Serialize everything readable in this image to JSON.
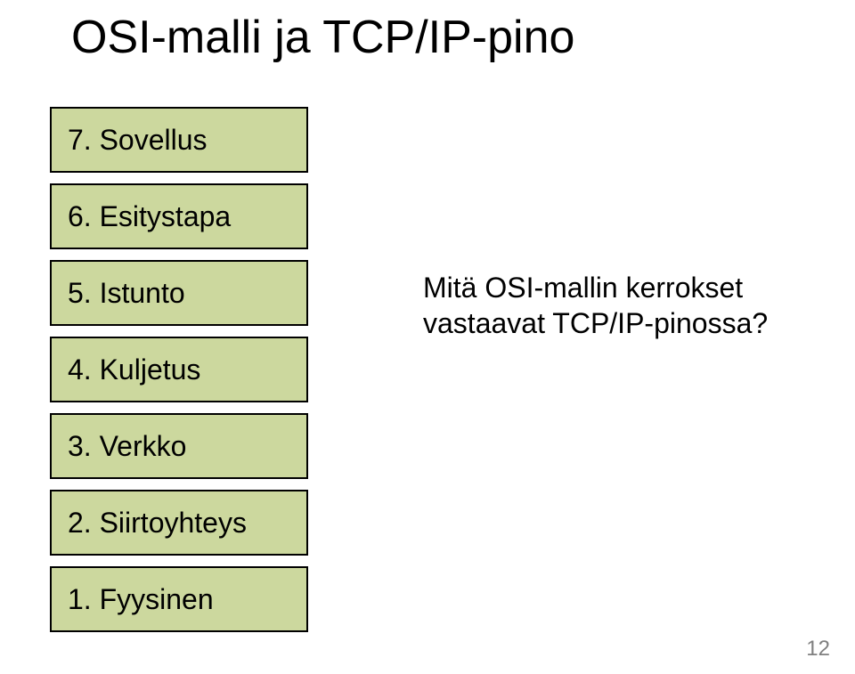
{
  "title": "OSI-malli ja TCP/IP-pino",
  "layer_fill": "#ccd89e",
  "layer_border": "#000000",
  "layers": [
    {
      "label": "7. Sovellus"
    },
    {
      "label": "6. Esitystapa"
    },
    {
      "label": "5. Istunto"
    },
    {
      "label": "4. Kuljetus"
    },
    {
      "label": "3. Verkko"
    },
    {
      "label": "2. Siirtoyhteys"
    },
    {
      "label": "1. Fyysinen"
    }
  ],
  "question": {
    "line1": "Mitä OSI-mallin kerrokset",
    "line2": "vastaavat TCP/IP-pinossa?"
  },
  "page_number": "12",
  "text_color": "#000000",
  "pagenum_color": "#808080",
  "background_color": "#ffffff",
  "title_fontsize": 52,
  "body_fontsize": 32
}
